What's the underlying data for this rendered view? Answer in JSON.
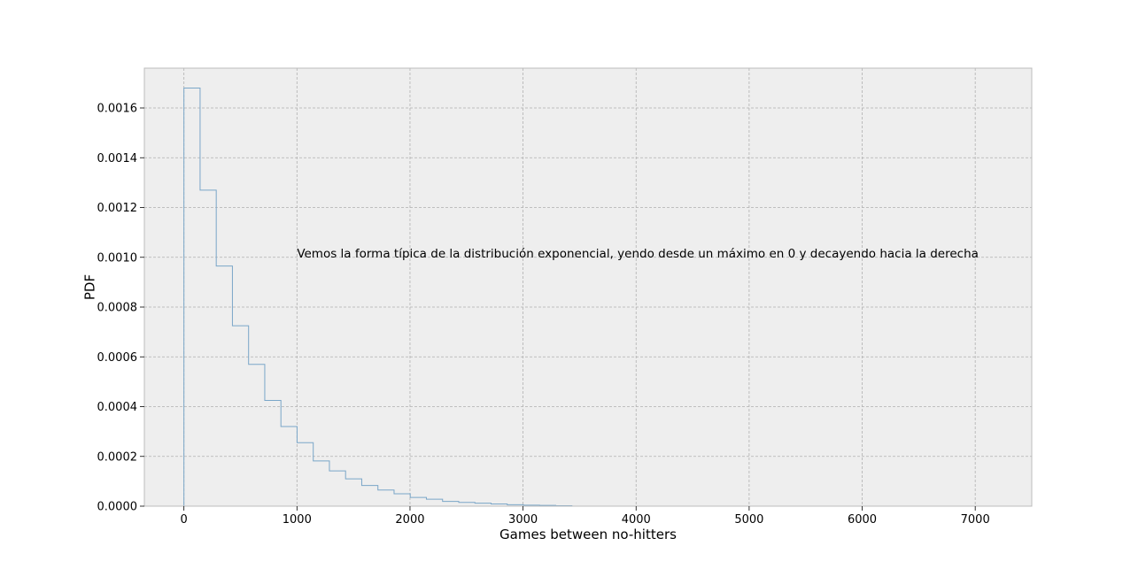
{
  "chart_data": {
    "type": "histogram-step",
    "xlabel": "Games between no-hitters",
    "ylabel": "PDF",
    "xlim": [
      -350,
      7500
    ],
    "ylim": [
      0,
      0.00176
    ],
    "grid": true,
    "x_ticks": [
      0,
      1000,
      2000,
      3000,
      4000,
      5000,
      6000,
      7000
    ],
    "x_tick_labels": [
      "0",
      "1000",
      "2000",
      "3000",
      "4000",
      "5000",
      "6000",
      "7000"
    ],
    "y_ticks": [
      0,
      0.0002,
      0.0004,
      0.0006,
      0.0008,
      0.001,
      0.0012,
      0.0014,
      0.0016
    ],
    "y_tick_labels": [
      "0.0000",
      "0.0002",
      "0.0004",
      "0.0006",
      "0.0008",
      "0.0010",
      "0.0012",
      "0.0014",
      "0.0016"
    ],
    "bin_edges": [
      0,
      143,
      286,
      429,
      572,
      715,
      858,
      1001,
      1144,
      1287,
      1430,
      1573,
      1716,
      1859,
      2002,
      2145,
      2288,
      2431,
      2574,
      2717,
      2860,
      3003,
      3146,
      3289,
      3432
    ],
    "bin_values": [
      0.00168,
      0.00127,
      0.000965,
      0.000725,
      0.00057,
      0.000425,
      0.00032,
      0.000255,
      0.000182,
      0.000142,
      0.00011,
      8.3e-05,
      6.5e-05,
      5e-05,
      3.5e-05,
      2.8e-05,
      1.9e-05,
      1.5e-05,
      1.2e-05,
      9e-06,
      6e-06,
      4e-06,
      3e-06,
      2e-06
    ],
    "line_color": "#7aa6c8",
    "annotation": {
      "text": "Vemos la forma típica de la distribución exponencial, yendo desde un máximo en 0 y decayendo hacia la derecha",
      "x": 1000,
      "y": 0.001
    }
  },
  "colors": {
    "plot_background": "#eeeeee",
    "frame": "#bcbcbc"
  }
}
